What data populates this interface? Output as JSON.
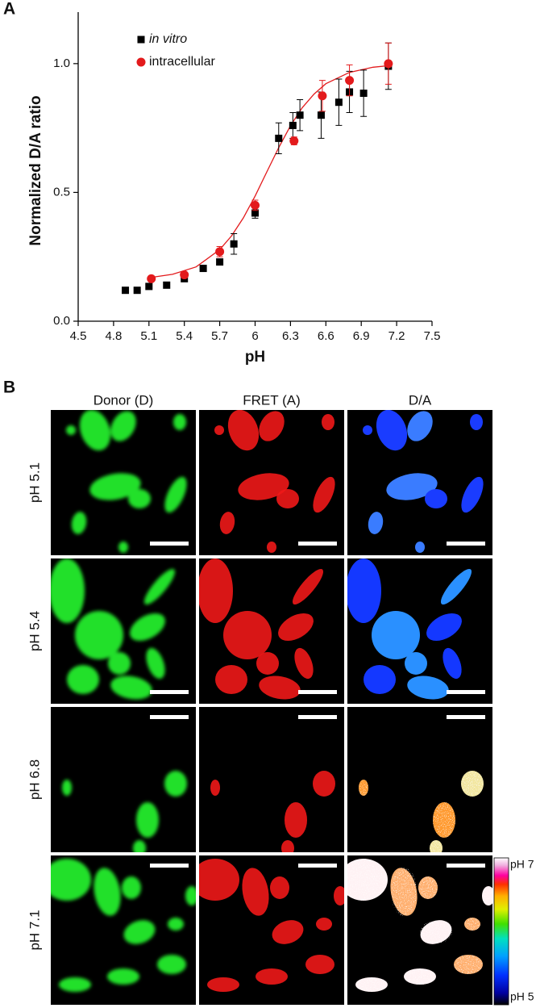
{
  "panel_labels": [
    "A",
    "B"
  ],
  "chart_data": {
    "type": "scatter",
    "xlabel": "pH",
    "ylabel": "Normalized D/A ratio",
    "xlim": [
      4.5,
      7.5
    ],
    "xticks": [
      4.5,
      4.8,
      5.1,
      5.4,
      5.7,
      6,
      6.3,
      6.6,
      6.9,
      7.2,
      7.5
    ],
    "ylim": [
      0,
      1.2
    ],
    "yticks": [
      {
        "value": 0,
        "label": "0.0"
      },
      {
        "value": 0.5,
        "label": "0.5"
      },
      {
        "value": 1,
        "label": "1.0"
      }
    ],
    "legend": "upper left",
    "series": [
      {
        "name": "in vitro",
        "color": "#000000",
        "marker": "square",
        "x": [
          4.9,
          5.0,
          5.1,
          5.25,
          5.4,
          5.56,
          5.7,
          5.82,
          6.0,
          6.2,
          6.32,
          6.38,
          6.56,
          6.71,
          6.8,
          6.92,
          7.13
        ],
        "values": [
          0.12,
          0.12,
          0.135,
          0.14,
          0.165,
          0.205,
          0.23,
          0.3,
          0.42,
          0.71,
          0.76,
          0.8,
          0.8,
          0.85,
          0.89,
          0.885,
          0.99
        ],
        "errors": [
          0.005,
          0.005,
          0.005,
          0.005,
          0.01,
          0.01,
          0.01,
          0.04,
          0.02,
          0.06,
          0.05,
          0.06,
          0.09,
          0.09,
          0.08,
          0.09,
          0.09
        ]
      },
      {
        "name": "intracellular",
        "color": "#e31a1c",
        "marker": "circle",
        "x": [
          5.12,
          5.4,
          5.7,
          6.0,
          6.33,
          6.57,
          6.8,
          7.13
        ],
        "values": [
          0.165,
          0.18,
          0.27,
          0.45,
          0.7,
          0.875,
          0.935,
          1.0
        ],
        "errors": [
          0.01,
          0.01,
          0.02,
          0.02,
          0.015,
          0.06,
          0.06,
          0.08
        ]
      }
    ],
    "fit": {
      "color": "#e31a1c",
      "x": [
        5.1,
        5.3,
        5.5,
        5.7,
        5.8,
        5.9,
        6.0,
        6.1,
        6.2,
        6.3,
        6.4,
        6.5,
        6.6,
        6.8,
        7.0,
        7.15
      ],
      "values": [
        0.169,
        0.182,
        0.211,
        0.278,
        0.331,
        0.401,
        0.486,
        0.58,
        0.674,
        0.759,
        0.829,
        0.882,
        0.922,
        0.966,
        0.986,
        0.993
      ]
    }
  },
  "image_grid": {
    "columns": [
      "Donor (D)",
      "FRET (A)",
      "D/A"
    ],
    "rows": [
      "pH 5.1",
      "pH 5.4",
      "pH 6.8",
      "pH 7.1"
    ]
  },
  "colorbar": {
    "top": "pH 7",
    "bottom": "pH 5"
  }
}
